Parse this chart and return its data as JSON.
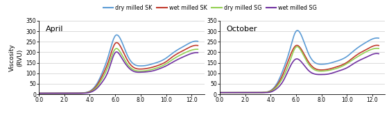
{
  "title_april": "April",
  "title_october": "October",
  "ylabel": "Viscosity\n(RVU)",
  "xlim": [
    0.0,
    13.0
  ],
  "ylim": [
    0,
    350
  ],
  "yticks": [
    0,
    50,
    100,
    150,
    200,
    250,
    300,
    350
  ],
  "xticks": [
    0.0,
    2.0,
    4.0,
    6.0,
    8.0,
    10.0,
    12.0
  ],
  "xticklabels": [
    "0.0",
    "2.0",
    "4.0",
    "6.0",
    "8.0",
    "10.0",
    "12.0"
  ],
  "legend_labels": [
    "dry milled SK",
    "wet milled SK",
    "dry milled SG",
    "wet milled SG"
  ],
  "legend_colors": [
    "#5B9BD5",
    "#C0392B",
    "#92D050",
    "#7030A0"
  ],
  "april": {
    "dry_SK": {
      "x": [
        0.0,
        0.5,
        1.0,
        1.5,
        2.0,
        2.5,
        3.0,
        3.5,
        4.0,
        4.5,
        5.0,
        5.5,
        6.0,
        6.5,
        7.0,
        7.5,
        8.0,
        8.5,
        9.0,
        9.5,
        10.0,
        10.5,
        11.0,
        11.5,
        12.0,
        12.5
      ],
      "y": [
        5,
        5,
        5,
        5,
        5,
        5,
        5,
        7,
        15,
        45,
        105,
        190,
        278,
        252,
        180,
        142,
        135,
        138,
        146,
        156,
        172,
        195,
        215,
        232,
        248,
        252
      ]
    },
    "wet_SK": {
      "x": [
        0.0,
        0.5,
        1.0,
        1.5,
        2.0,
        2.5,
        3.0,
        3.5,
        4.0,
        4.5,
        5.0,
        5.5,
        6.0,
        6.5,
        7.0,
        7.5,
        8.0,
        8.5,
        9.0,
        9.5,
        10.0,
        10.5,
        11.0,
        11.5,
        12.0,
        12.5
      ],
      "y": [
        5,
        5,
        5,
        5,
        5,
        5,
        5,
        6,
        13,
        38,
        90,
        162,
        242,
        218,
        158,
        126,
        120,
        123,
        130,
        140,
        155,
        178,
        197,
        213,
        228,
        232
      ]
    },
    "dry_SG": {
      "x": [
        0.0,
        0.5,
        1.0,
        1.5,
        2.0,
        2.5,
        3.0,
        3.5,
        4.0,
        4.5,
        5.0,
        5.5,
        6.0,
        6.5,
        7.0,
        7.5,
        8.0,
        8.5,
        9.0,
        9.5,
        10.0,
        10.5,
        11.0,
        11.5,
        12.0,
        12.5
      ],
      "y": [
        5,
        5,
        5,
        5,
        5,
        5,
        5,
        6,
        11,
        32,
        76,
        142,
        215,
        190,
        140,
        115,
        110,
        113,
        120,
        130,
        145,
        165,
        183,
        198,
        210,
        214
      ]
    },
    "wet_SG": {
      "x": [
        0.0,
        0.5,
        1.0,
        1.5,
        2.0,
        2.5,
        3.0,
        3.5,
        4.0,
        4.5,
        5.0,
        5.5,
        6.0,
        6.5,
        7.0,
        7.5,
        8.0,
        8.5,
        9.0,
        9.5,
        10.0,
        10.5,
        11.0,
        11.5,
        12.0,
        12.5
      ],
      "y": [
        5,
        5,
        5,
        5,
        5,
        5,
        5,
        5,
        9,
        25,
        60,
        118,
        198,
        174,
        130,
        108,
        105,
        107,
        112,
        122,
        135,
        152,
        168,
        182,
        194,
        198
      ]
    }
  },
  "october": {
    "dry_SK": {
      "x": [
        0.0,
        0.5,
        1.0,
        1.5,
        2.0,
        2.5,
        3.0,
        3.5,
        4.0,
        4.5,
        5.0,
        5.5,
        6.0,
        6.5,
        7.0,
        7.5,
        8.0,
        8.5,
        9.0,
        9.5,
        10.0,
        10.5,
        11.0,
        11.5,
        12.0,
        12.5
      ],
      "y": [
        8,
        8,
        8,
        8,
        8,
        8,
        8,
        9,
        18,
        52,
        120,
        210,
        300,
        268,
        190,
        150,
        143,
        146,
        154,
        164,
        180,
        205,
        228,
        247,
        263,
        267
      ]
    },
    "wet_SK": {
      "x": [
        0.0,
        0.5,
        1.0,
        1.5,
        2.0,
        2.5,
        3.0,
        3.5,
        4.0,
        4.5,
        5.0,
        5.5,
        6.0,
        6.5,
        7.0,
        7.5,
        8.0,
        8.5,
        9.0,
        9.5,
        10.0,
        10.5,
        11.0,
        11.5,
        12.0,
        12.5
      ],
      "y": [
        8,
        8,
        8,
        8,
        8,
        8,
        8,
        9,
        16,
        44,
        100,
        178,
        232,
        205,
        152,
        122,
        116,
        119,
        127,
        137,
        152,
        175,
        196,
        212,
        228,
        232
      ]
    },
    "dry_SG": {
      "x": [
        0.0,
        0.5,
        1.0,
        1.5,
        2.0,
        2.5,
        3.0,
        3.5,
        4.0,
        4.5,
        5.0,
        5.5,
        6.0,
        6.5,
        7.0,
        7.5,
        8.0,
        8.5,
        9.0,
        9.5,
        10.0,
        10.5,
        11.0,
        11.5,
        12.0,
        12.5
      ],
      "y": [
        8,
        8,
        8,
        8,
        8,
        8,
        8,
        9,
        14,
        38,
        84,
        155,
        225,
        195,
        142,
        115,
        110,
        113,
        120,
        130,
        146,
        166,
        185,
        202,
        215,
        218
      ]
    },
    "wet_SG": {
      "x": [
        0.0,
        0.5,
        1.0,
        1.5,
        2.0,
        2.5,
        3.0,
        3.5,
        4.0,
        4.5,
        5.0,
        5.5,
        6.0,
        6.5,
        7.0,
        7.5,
        8.0,
        8.5,
        9.0,
        9.5,
        10.0,
        10.5,
        11.0,
        11.5,
        12.0,
        12.5
      ],
      "y": [
        8,
        8,
        8,
        8,
        8,
        8,
        8,
        8,
        11,
        28,
        65,
        128,
        168,
        148,
        112,
        96,
        94,
        96,
        104,
        114,
        126,
        145,
        162,
        176,
        190,
        193
      ]
    }
  },
  "background_color": "#ffffff",
  "grid_color": "#cccccc",
  "linewidth": 1.2
}
